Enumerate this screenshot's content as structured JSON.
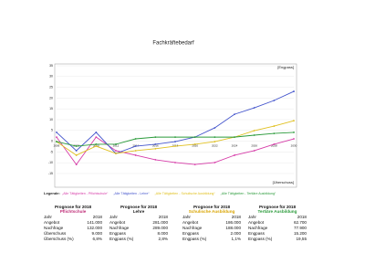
{
  "chart_data": {
    "type": "line",
    "title": "Fachkräftebedarf",
    "annotations": [
      "[Engpass]",
      "[Überschuss]"
    ],
    "legend_title": "Legende:",
    "categories": [
      2006,
      2008,
      2010,
      2012,
      2014,
      2016,
      2018,
      2020,
      2022,
      2024,
      2026,
      2028,
      2030
    ],
    "ylim": [
      -15,
      35
    ],
    "yticks": [
      -15,
      -10,
      -5,
      0,
      5,
      10,
      15,
      20,
      25,
      30,
      35
    ],
    "grid": true,
    "series": [
      {
        "name": "„Alle Tätigkeiten - Pflichtschule“",
        "color": "#d63ca8",
        "values": [
          1.9,
          -10.8,
          1.9,
          -4.4,
          -6.5,
          -8.6,
          -9.9,
          -10.8,
          -9.9,
          -6.5,
          -4.4,
          -1.4,
          1.1
        ]
      },
      {
        "name": "„Alle Tätigkeiten - Lehre“",
        "color": "#4455cc",
        "values": [
          4.1,
          -4.4,
          4.1,
          -5.7,
          -2.3,
          -1.4,
          -0.2,
          1.9,
          6.2,
          12.5,
          15.5,
          18.9,
          23.1
        ]
      },
      {
        "name": "„Alle Tätigkeiten - Schulische Ausbildung“",
        "color": "#e0c020",
        "values": [
          -0.2,
          -6.5,
          -2.3,
          -5.7,
          -4.4,
          -3.5,
          -2.3,
          -1.4,
          -0.2,
          1.9,
          4.9,
          7.0,
          9.5
        ]
      },
      {
        "name": "„Alle Tätigkeiten - Tertiäre Ausbildung“",
        "color": "#2a9a3a",
        "values": [
          -0.2,
          -2.3,
          -1.4,
          -1.4,
          1.1,
          1.9,
          1.9,
          1.9,
          1.9,
          1.9,
          2.8,
          3.6,
          4.1
        ]
      }
    ]
  },
  "tables": [
    {
      "heading": "Prognose für 2018",
      "subtitle": "Pflichtschule",
      "rows": [
        [
          "Jahr",
          "2018"
        ],
        [
          "Angebot",
          "141.000"
        ],
        [
          "Nachfrage",
          "132.000"
        ],
        [
          "Überschuss",
          "9.000"
        ],
        [
          "Überschuss (%)",
          "6,8%"
        ]
      ]
    },
    {
      "heading": "Prognose für 2018",
      "subtitle": "Lehre",
      "rows": [
        [
          "Jahr",
          "2018"
        ],
        [
          "Angebot",
          "281.000"
        ],
        [
          "Nachfrage",
          "289.000"
        ],
        [
          "Engpass",
          "8.000"
        ],
        [
          "Engpass (%)",
          "2,8%"
        ]
      ]
    },
    {
      "heading": "Prognose für 2018",
      "subtitle": "Schulische Ausbildung",
      "rows": [
        [
          "Jahr",
          "2018"
        ],
        [
          "Angebot",
          "186.000"
        ],
        [
          "Nachfrage",
          "188.000"
        ],
        [
          "Engpass",
          "2.000"
        ],
        [
          "Engpass (%)",
          "1,1%"
        ]
      ]
    },
    {
      "heading": "Prognose für 2018",
      "subtitle": "Tertiäre Ausbildung",
      "rows": [
        [
          "Jahr",
          "2018"
        ],
        [
          "Angebot",
          "62.700"
        ],
        [
          "Nachfrage",
          "77.900"
        ],
        [
          "Engpass",
          "15.200"
        ],
        [
          "Engpass (%)",
          "19,55"
        ]
      ]
    }
  ]
}
